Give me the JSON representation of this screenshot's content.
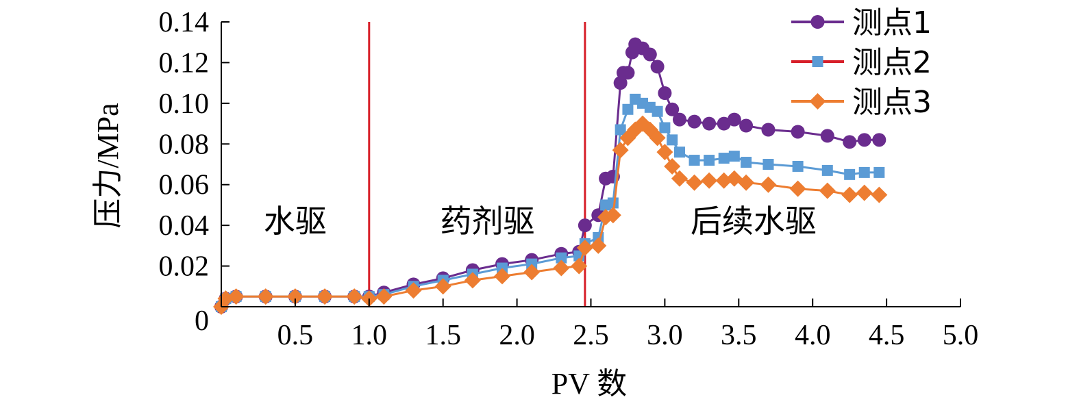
{
  "chart_data": {
    "type": "line",
    "xlabel": "PV 数",
    "ylabel": "压力/MPa",
    "x_ticks": [
      "0.5",
      "1.0",
      "1.5",
      "2.0",
      "2.5",
      "3.0",
      "3.5",
      "4.0",
      "4.5",
      "5.0"
    ],
    "x_tick_values": [
      0.5,
      1.0,
      1.5,
      2.0,
      2.5,
      3.0,
      3.5,
      4.0,
      4.5,
      5.0
    ],
    "y_ticks": [
      "0",
      "0.02",
      "0.04",
      "0.06",
      "0.08",
      "0.10",
      "0.12",
      "0.14"
    ],
    "y_tick_values": [
      0,
      0.02,
      0.04,
      0.06,
      0.08,
      0.1,
      0.12,
      0.14
    ],
    "xlim": [
      0,
      5.0
    ],
    "ylim": [
      0,
      0.14
    ],
    "grid": false,
    "legend_position": "top-right",
    "legend": [
      {
        "label": "测点1",
        "color": "#6a2c8e",
        "marker": "circle"
      },
      {
        "label": "测点2",
        "color": "#5b9bd5",
        "marker": "square"
      },
      {
        "label": "测点3",
        "color": "#ed7d31",
        "marker": "diamond"
      }
    ],
    "legend_line_color": "#d71f29",
    "vertical_lines": [
      {
        "x": 1.0,
        "color": "#d71f29"
      },
      {
        "x": 2.46,
        "color": "#d71f29"
      }
    ],
    "annotations": [
      {
        "text": "水驱",
        "x": 0.5,
        "y": 0.042
      },
      {
        "text": "药剂驱",
        "x": 1.8,
        "y": 0.042
      },
      {
        "text": "后续水驱",
        "x": 3.6,
        "y": 0.042
      }
    ],
    "series": [
      {
        "name": "测点1",
        "color": "#6a2c8e",
        "marker": "circle",
        "points": [
          [
            0.0,
            0.0
          ],
          [
            0.03,
            0.004
          ],
          [
            0.1,
            0.005
          ],
          [
            0.3,
            0.005
          ],
          [
            0.5,
            0.005
          ],
          [
            0.7,
            0.005
          ],
          [
            0.9,
            0.005
          ],
          [
            1.0,
            0.005
          ],
          [
            1.1,
            0.007
          ],
          [
            1.3,
            0.011
          ],
          [
            1.5,
            0.014
          ],
          [
            1.7,
            0.018
          ],
          [
            1.9,
            0.021
          ],
          [
            2.1,
            0.023
          ],
          [
            2.3,
            0.026
          ],
          [
            2.42,
            0.027
          ],
          [
            2.46,
            0.04
          ],
          [
            2.55,
            0.045
          ],
          [
            2.6,
            0.063
          ],
          [
            2.65,
            0.064
          ],
          [
            2.7,
            0.11
          ],
          [
            2.72,
            0.115
          ],
          [
            2.75,
            0.115
          ],
          [
            2.78,
            0.125
          ],
          [
            2.8,
            0.129
          ],
          [
            2.85,
            0.127
          ],
          [
            2.9,
            0.124
          ],
          [
            2.95,
            0.118
          ],
          [
            3.0,
            0.105
          ],
          [
            3.05,
            0.097
          ],
          [
            3.1,
            0.092
          ],
          [
            3.2,
            0.091
          ],
          [
            3.3,
            0.09
          ],
          [
            3.4,
            0.09
          ],
          [
            3.47,
            0.092
          ],
          [
            3.55,
            0.089
          ],
          [
            3.7,
            0.087
          ],
          [
            3.9,
            0.086
          ],
          [
            4.1,
            0.084
          ],
          [
            4.25,
            0.081
          ],
          [
            4.35,
            0.082
          ],
          [
            4.45,
            0.082
          ]
        ]
      },
      {
        "name": "测点2",
        "color": "#5b9bd5",
        "marker": "square",
        "points": [
          [
            0.0,
            0.0
          ],
          [
            0.03,
            0.004
          ],
          [
            0.1,
            0.005
          ],
          [
            0.3,
            0.005
          ],
          [
            0.5,
            0.005
          ],
          [
            0.7,
            0.005
          ],
          [
            0.9,
            0.005
          ],
          [
            1.0,
            0.005
          ],
          [
            1.1,
            0.006
          ],
          [
            1.3,
            0.01
          ],
          [
            1.5,
            0.013
          ],
          [
            1.7,
            0.016
          ],
          [
            1.9,
            0.019
          ],
          [
            2.1,
            0.021
          ],
          [
            2.3,
            0.024
          ],
          [
            2.42,
            0.025
          ],
          [
            2.46,
            0.031
          ],
          [
            2.55,
            0.034
          ],
          [
            2.6,
            0.05
          ],
          [
            2.65,
            0.051
          ],
          [
            2.7,
            0.087
          ],
          [
            2.75,
            0.097
          ],
          [
            2.8,
            0.102
          ],
          [
            2.85,
            0.1
          ],
          [
            2.9,
            0.098
          ],
          [
            2.95,
            0.096
          ],
          [
            3.0,
            0.088
          ],
          [
            3.05,
            0.082
          ],
          [
            3.1,
            0.076
          ],
          [
            3.2,
            0.072
          ],
          [
            3.3,
            0.072
          ],
          [
            3.4,
            0.073
          ],
          [
            3.47,
            0.074
          ],
          [
            3.55,
            0.071
          ],
          [
            3.7,
            0.07
          ],
          [
            3.9,
            0.069
          ],
          [
            4.1,
            0.067
          ],
          [
            4.25,
            0.065
          ],
          [
            4.35,
            0.066
          ],
          [
            4.45,
            0.066
          ]
        ]
      },
      {
        "name": "测点3",
        "color": "#ed7d31",
        "marker": "diamond",
        "points": [
          [
            0.0,
            0.0
          ],
          [
            0.03,
            0.004
          ],
          [
            0.1,
            0.005
          ],
          [
            0.3,
            0.005
          ],
          [
            0.5,
            0.005
          ],
          [
            0.7,
            0.005
          ],
          [
            0.9,
            0.005
          ],
          [
            1.0,
            0.004
          ],
          [
            1.1,
            0.005
          ],
          [
            1.3,
            0.008
          ],
          [
            1.5,
            0.01
          ],
          [
            1.7,
            0.013
          ],
          [
            1.9,
            0.015
          ],
          [
            2.1,
            0.017
          ],
          [
            2.3,
            0.019
          ],
          [
            2.42,
            0.02
          ],
          [
            2.46,
            0.029
          ],
          [
            2.55,
            0.03
          ],
          [
            2.6,
            0.044
          ],
          [
            2.65,
            0.045
          ],
          [
            2.7,
            0.077
          ],
          [
            2.75,
            0.083
          ],
          [
            2.8,
            0.087
          ],
          [
            2.85,
            0.09
          ],
          [
            2.9,
            0.087
          ],
          [
            2.95,
            0.083
          ],
          [
            3.0,
            0.076
          ],
          [
            3.05,
            0.069
          ],
          [
            3.1,
            0.063
          ],
          [
            3.2,
            0.061
          ],
          [
            3.3,
            0.062
          ],
          [
            3.4,
            0.062
          ],
          [
            3.47,
            0.063
          ],
          [
            3.55,
            0.061
          ],
          [
            3.7,
            0.06
          ],
          [
            3.9,
            0.058
          ],
          [
            4.1,
            0.057
          ],
          [
            4.25,
            0.055
          ],
          [
            4.35,
            0.056
          ],
          [
            4.45,
            0.055
          ]
        ]
      }
    ]
  }
}
